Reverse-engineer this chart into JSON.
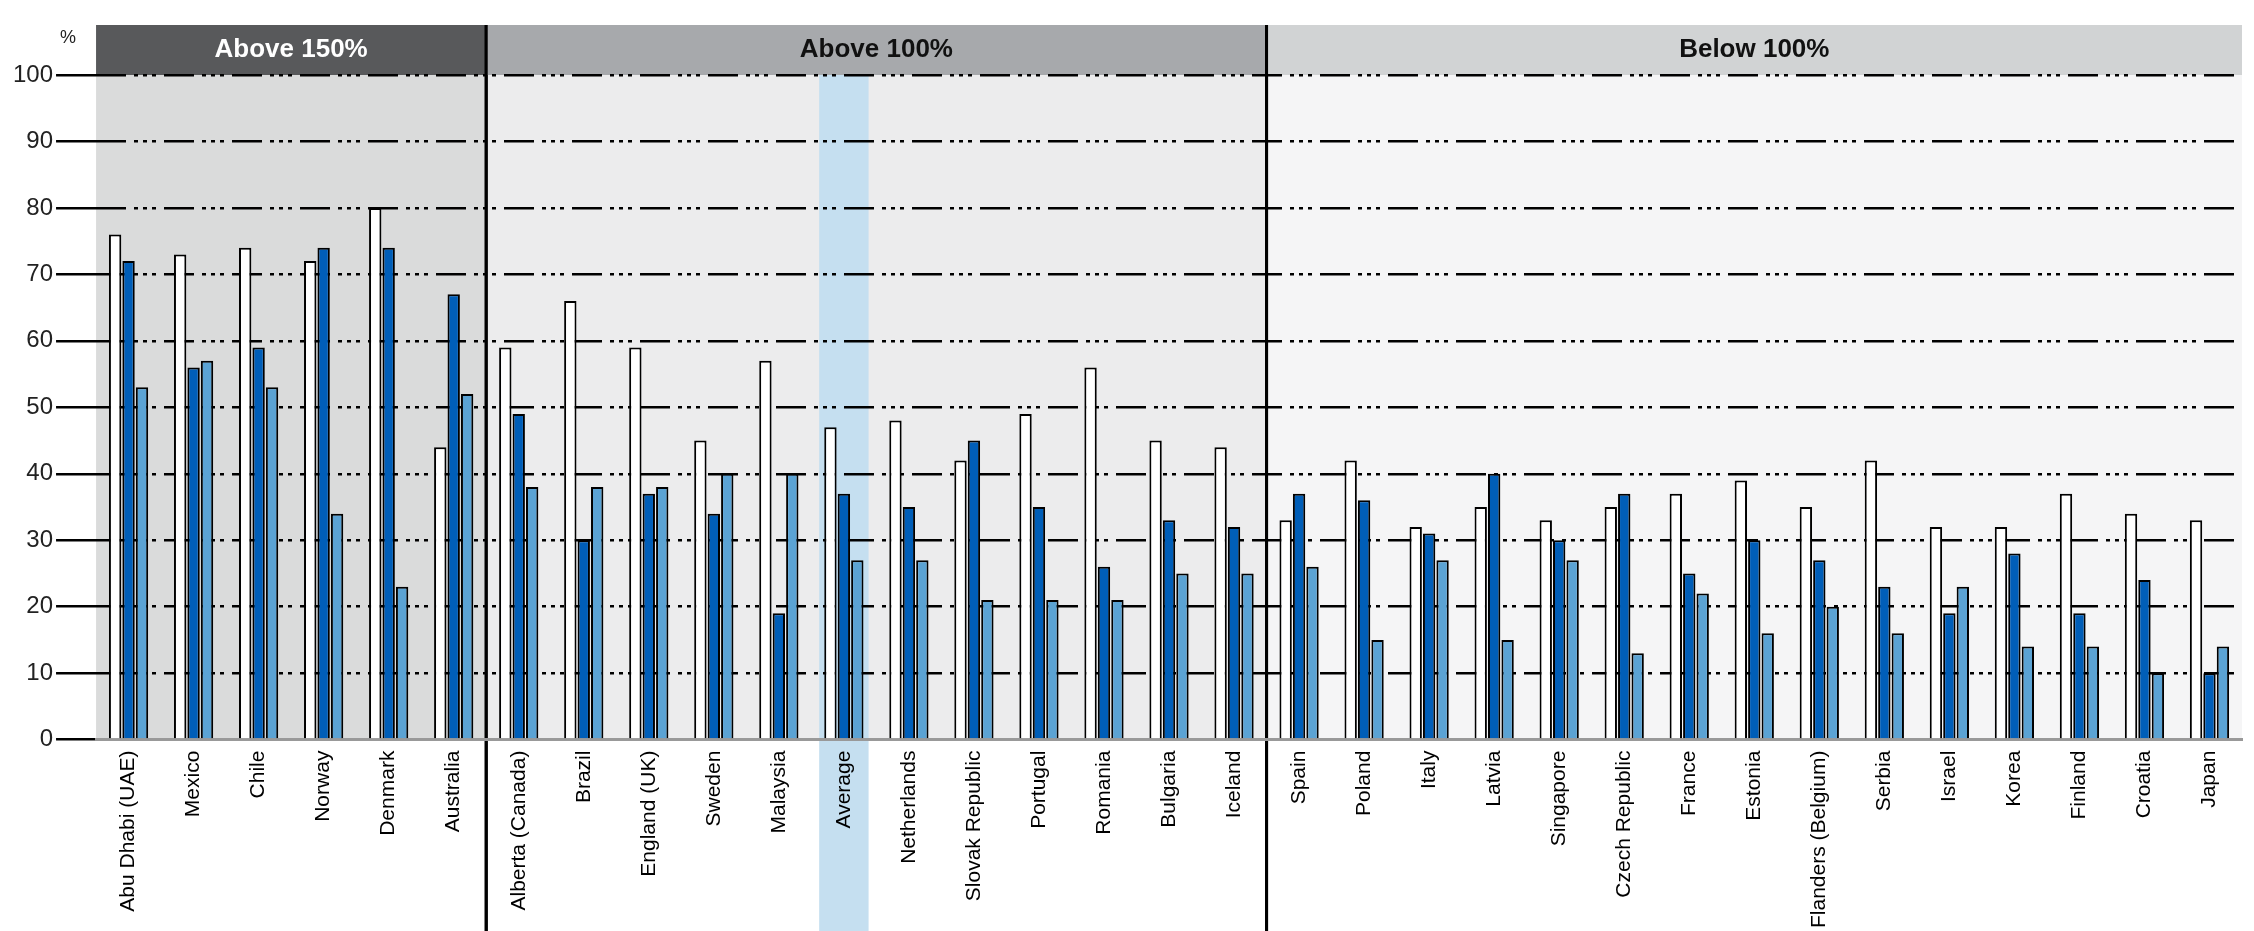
{
  "chart_data": {
    "type": "bar",
    "ylabel": "%",
    "categories": [
      "Abu Dhabi (UAE)",
      "Mexico",
      "Chile",
      "Norway",
      "Denmark",
      "Australia",
      "Alberta (Canada)",
      "Brazil",
      "England (UK)",
      "Sweden",
      "Malaysia",
      "Average",
      "Netherlands",
      "Slovak Republic",
      "Portugal",
      "Romania",
      "Bulgaria",
      "Iceland",
      "Spain",
      "Poland",
      "Italy",
      "Latvia",
      "Singapore",
      "Czech Republic",
      "France",
      "Estonia",
      "Flanders (Belgium)",
      "Serbia",
      "Israel",
      "Korea",
      "Finland",
      "Croatia",
      "Japan"
    ],
    "series": [
      {
        "color": "#ffffff",
        "values": [
          76,
          73,
          74,
          72,
          80,
          44,
          59,
          66,
          59,
          45,
          57,
          47,
          48,
          42,
          49,
          56,
          45,
          44,
          33,
          42,
          32,
          35,
          33,
          35,
          37,
          39,
          35,
          42,
          32,
          32,
          37,
          34,
          33
        ]
      },
      {
        "color": "#005eb8",
        "values": [
          72,
          56,
          59,
          74,
          74,
          67,
          49,
          30,
          37,
          34,
          19,
          37,
          35,
          45,
          35,
          26,
          33,
          32,
          37,
          36,
          31,
          40,
          30,
          37,
          25,
          30,
          27,
          23,
          19,
          28,
          19,
          24,
          10
        ]
      },
      {
        "color": "#5ba3d4",
        "values": [
          53,
          57,
          53,
          34,
          23,
          52,
          38,
          38,
          38,
          40,
          40,
          27,
          27,
          21,
          21,
          21,
          25,
          25,
          26,
          15,
          27,
          15,
          27,
          13,
          22,
          16,
          20,
          16,
          23,
          14,
          14,
          10,
          14
        ]
      }
    ],
    "ylim": [
      0,
      100
    ],
    "yticks": [
      0,
      10,
      20,
      30,
      40,
      50,
      60,
      70,
      80,
      90,
      100
    ],
    "grid": "y",
    "legend": false,
    "bands": [
      {
        "axis": "x",
        "from": "Abu Dhabi (UAE)",
        "to": "Australia",
        "label": "Above 150%",
        "color": "#58595b"
      },
      {
        "axis": "x",
        "from": "Alberta (Canada)",
        "to": "Iceland",
        "label": "Above 100%",
        "color": "#a7a9ac"
      },
      {
        "axis": "x",
        "from": "Spain",
        "to": "Japan",
        "label": "Below 100%",
        "color": "#d1d3d4"
      },
      {
        "axis": "x",
        "from": "Average",
        "to": "Average",
        "color": "#c5dff0"
      }
    ]
  }
}
